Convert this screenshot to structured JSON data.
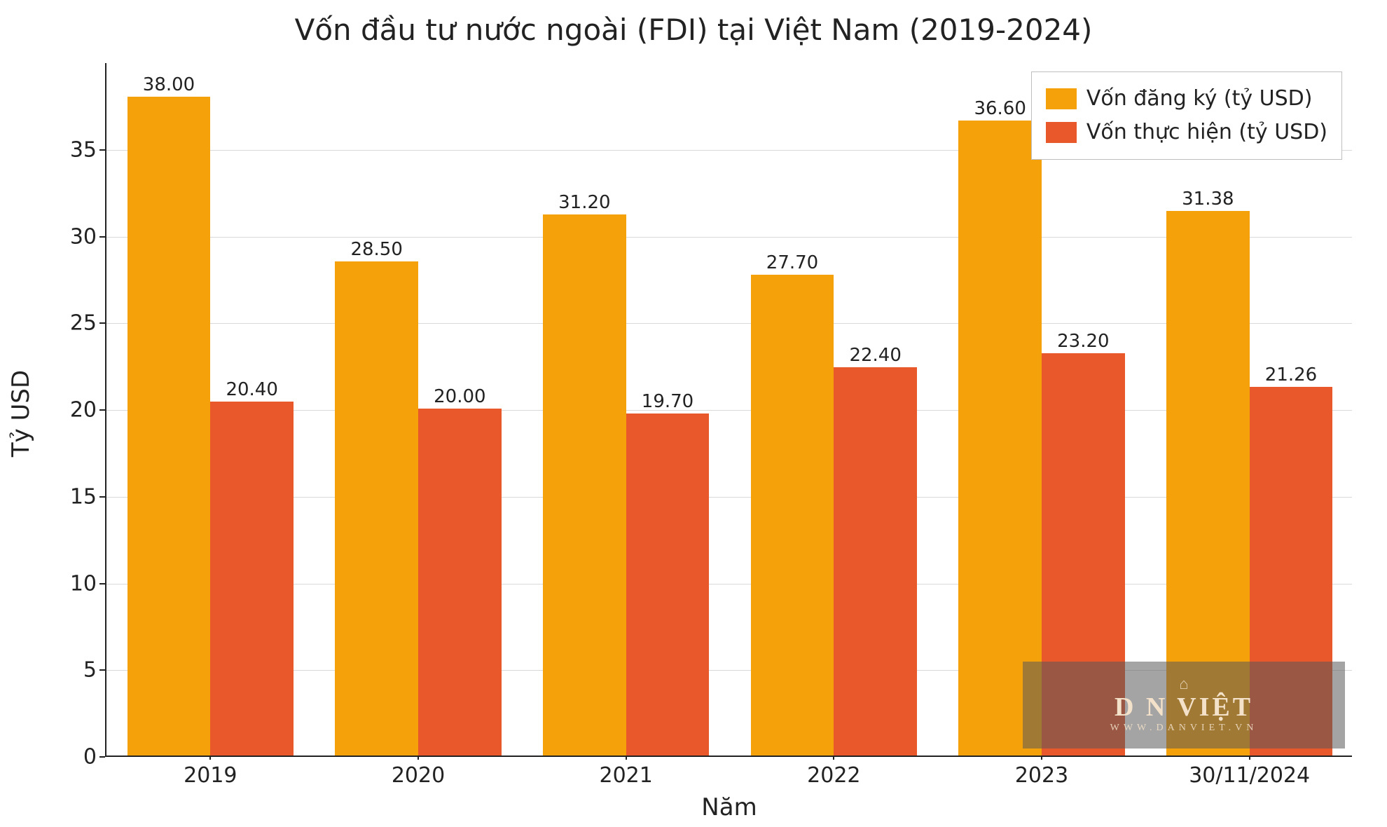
{
  "chart": {
    "type": "grouped-bar",
    "title": "Vốn đầu tư nước ngoài (FDI) tại Việt Nam (2019-2024)",
    "title_fontsize": 42,
    "background_color": "#ffffff",
    "grid_color": "#d9d9d9",
    "axis_color": "#222222",
    "x_title": "Năm",
    "y_title": "Tỷ USD",
    "label_fontsize": 34,
    "tick_fontsize": 30,
    "value_label_fontsize": 26,
    "categories": [
      "2019",
      "2020",
      "2021",
      "2022",
      "2023",
      "30/11/2024"
    ],
    "series": [
      {
        "name": "Vốn đăng ký (tỷ USD)",
        "color": "#f5a20a",
        "values": [
          38.0,
          28.5,
          31.2,
          27.7,
          36.6,
          31.38
        ],
        "value_labels": [
          "38.00",
          "28.50",
          "31.20",
          "27.70",
          "36.60",
          "31.38"
        ]
      },
      {
        "name": "Vốn thực hiện (tỷ USD)",
        "color": "#e8582b",
        "values": [
          20.4,
          20.0,
          19.7,
          22.4,
          23.2,
          21.26
        ],
        "value_labels": [
          "20.40",
          "20.00",
          "19.70",
          "22.40",
          "23.20",
          "21.26"
        ]
      }
    ],
    "ylim": [
      0,
      40
    ],
    "yticks": [
      0,
      5,
      10,
      15,
      20,
      25,
      30,
      35
    ],
    "bar_width": 0.4,
    "legend": {
      "position": "upper-right",
      "border_color": "#bfbfbf",
      "background": "#ffffff"
    }
  },
  "watermark": {
    "main": "D   N VIỆT",
    "sub": "WWW.DANVIET.VN"
  }
}
